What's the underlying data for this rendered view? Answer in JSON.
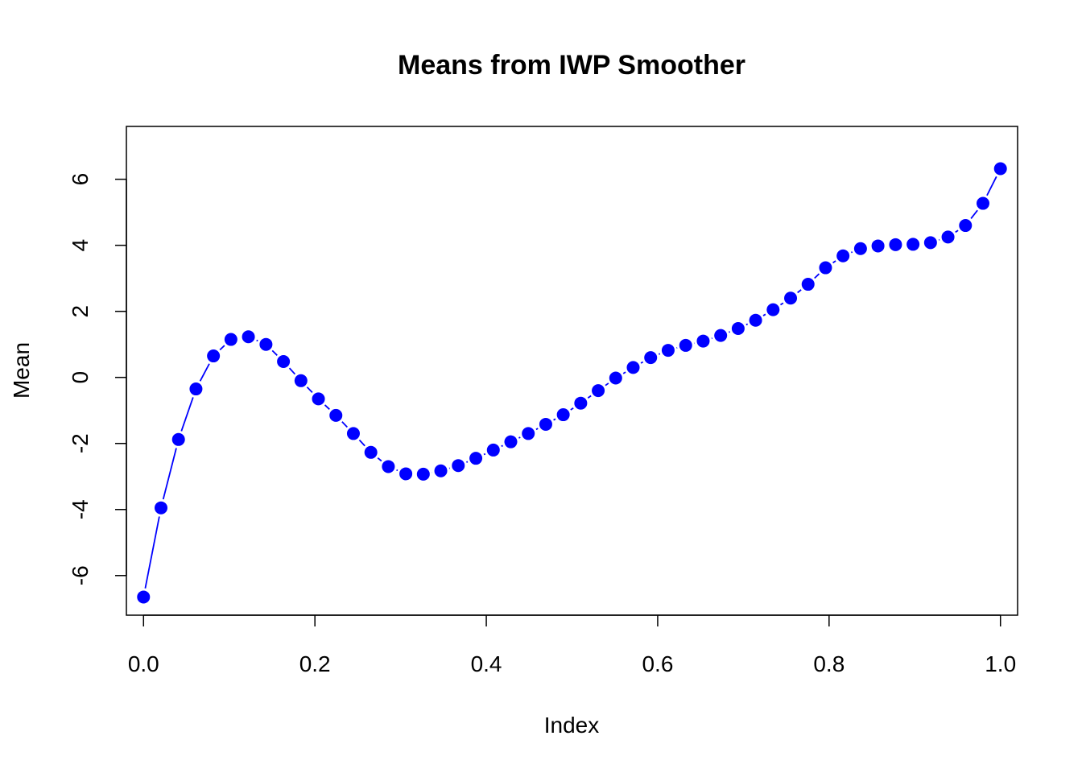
{
  "chart_data": {
    "type": "line",
    "title": "Means from IWP Smoother",
    "xlabel": "Index",
    "ylabel": "Mean",
    "xlim": [
      -0.02,
      1.02
    ],
    "ylim": [
      -7.2,
      7.6
    ],
    "x_ticks": [
      0.0,
      0.2,
      0.4,
      0.6,
      0.8,
      1.0
    ],
    "x_tick_labels": [
      "0.0",
      "0.2",
      "0.4",
      "0.6",
      "0.8",
      "1.0"
    ],
    "y_ticks": [
      -6,
      -4,
      -2,
      0,
      2,
      4,
      6
    ],
    "y_tick_labels": [
      "-6",
      "-4",
      "-2",
      "0",
      "2",
      "4",
      "6"
    ],
    "grid": false,
    "legend": "none",
    "series": [
      {
        "color": "#0000ff",
        "style": "points-and-lines",
        "x": [
          0.0,
          0.0204,
          0.0408,
          0.0612,
          0.0816,
          0.102,
          0.1224,
          0.1429,
          0.1633,
          0.1837,
          0.2041,
          0.2245,
          0.2449,
          0.2653,
          0.2857,
          0.3061,
          0.3265,
          0.3469,
          0.3673,
          0.3878,
          0.4082,
          0.4286,
          0.449,
          0.4694,
          0.4898,
          0.5102,
          0.5306,
          0.551,
          0.5714,
          0.5918,
          0.6122,
          0.6327,
          0.6531,
          0.6735,
          0.6939,
          0.7143,
          0.7347,
          0.7551,
          0.7755,
          0.7959,
          0.8163,
          0.8367,
          0.8571,
          0.8776,
          0.898,
          0.9184,
          0.9388,
          0.9592,
          0.9796,
          1.0
        ],
        "y": [
          -6.65,
          -3.95,
          -1.88,
          -0.35,
          0.65,
          1.15,
          1.23,
          1.0,
          0.48,
          -0.1,
          -0.65,
          -1.15,
          -1.7,
          -2.27,
          -2.7,
          -2.92,
          -2.93,
          -2.83,
          -2.67,
          -2.45,
          -2.2,
          -1.95,
          -1.7,
          -1.42,
          -1.13,
          -0.78,
          -0.4,
          -0.02,
          0.3,
          0.6,
          0.82,
          0.97,
          1.1,
          1.27,
          1.48,
          1.73,
          2.05,
          2.4,
          2.82,
          3.32,
          3.68,
          3.9,
          3.98,
          4.02,
          4.03,
          4.08,
          4.25,
          4.6,
          5.27,
          6.32
        ]
      }
    ]
  }
}
